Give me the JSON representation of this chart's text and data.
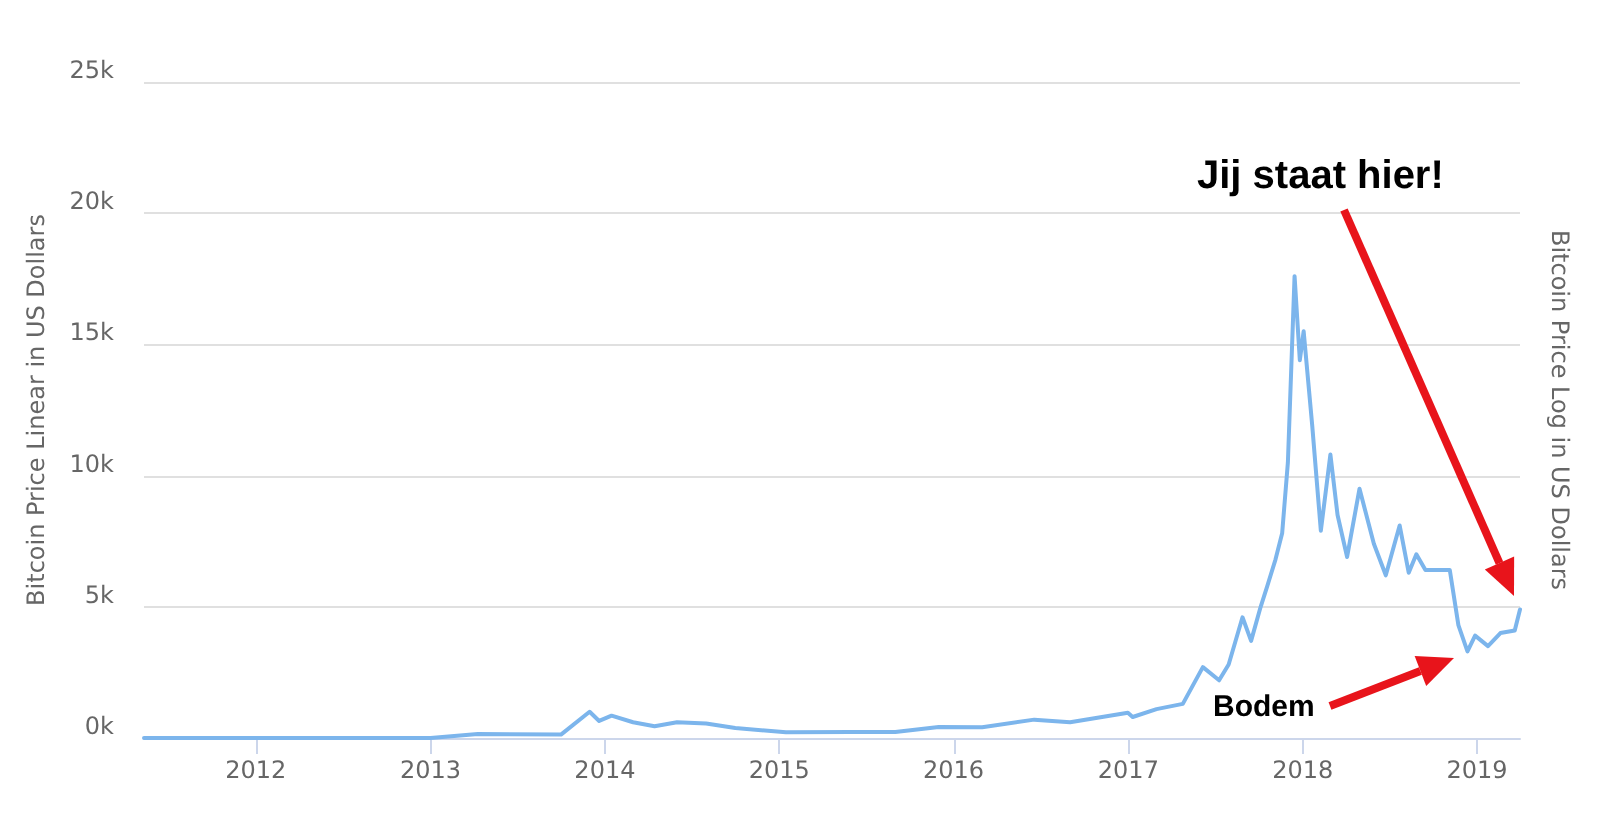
{
  "chart_data": {
    "type": "line",
    "ylabel": "Bitcoin Price Linear in US Dollars",
    "y2label": "Bitcoin Price Log in US Dollars",
    "x": [
      "2011-05-12",
      "2012-01-01",
      "2012-06-01",
      "2013-01-01",
      "2013-04-10",
      "2013-10-01",
      "2013-11-30",
      "2013-12-20",
      "2014-01-15",
      "2014-03-01",
      "2014-04-15",
      "2014-06-01",
      "2014-08-01",
      "2014-10-01",
      "2015-01-15",
      "2015-06-01",
      "2015-09-01",
      "2015-12-01",
      "2016-03-01",
      "2016-06-18",
      "2016-09-01",
      "2016-12-31",
      "2017-01-10",
      "2017-03-01",
      "2017-04-25",
      "2017-06-06",
      "2017-07-10",
      "2017-07-30",
      "2017-08-28",
      "2017-09-15",
      "2017-10-05",
      "2017-10-19",
      "2017-11-05",
      "2017-11-19",
      "2017-12-01",
      "2017-12-15",
      "2017-12-26",
      "2018-01-03",
      "2018-01-21",
      "2018-02-08",
      "2018-02-28",
      "2018-03-15",
      "2018-04-04",
      "2018-04-30",
      "2018-05-30",
      "2018-06-24",
      "2018-07-23",
      "2018-08-11",
      "2018-08-27",
      "2018-09-15",
      "2018-11-05",
      "2018-11-23",
      "2018-12-12",
      "2018-12-28",
      "2019-01-24",
      "2019-02-19",
      "2019-03-21",
      "2019-04-01"
    ],
    "series": [
      {
        "color": "#7cb5ec",
        "values": [
          0,
          0,
          0,
          0,
          150,
          130,
          1000,
          650,
          850,
          600,
          450,
          600,
          550,
          380,
          220,
          230,
          230,
          420,
          410,
          700,
          600,
          960,
          800,
          1100,
          1300,
          2700,
          2200,
          2800,
          4600,
          3700,
          5000,
          5800,
          6800,
          7800,
          10500,
          17600,
          14400,
          15500,
          11900,
          7900,
          10800,
          8500,
          6900,
          9500,
          7400,
          6200,
          8100,
          6300,
          7000,
          6400,
          6400,
          4300,
          3300,
          3900,
          3500,
          4000,
          4100,
          4900
        ]
      }
    ],
    "xlim": [
      "2011-05-12",
      "2019-04-01"
    ],
    "xticks": [
      "2012",
      "2013",
      "2014",
      "2015",
      "2016",
      "2017",
      "2018",
      "2019"
    ],
    "ylim": [
      0,
      25000
    ],
    "yticks": [
      {
        "value": 0,
        "label": "0k"
      },
      {
        "value": 5000,
        "label": "5k"
      },
      {
        "value": 10000,
        "label": "10k"
      },
      {
        "value": 15000,
        "label": "15k"
      },
      {
        "value": 20000,
        "label": "20k"
      },
      {
        "value": 25000,
        "label": "25k"
      }
    ],
    "grid": "y",
    "marker": "none",
    "line_style": "solid",
    "annotations": [
      "Jij staat hier!",
      "Bodem"
    ]
  }
}
